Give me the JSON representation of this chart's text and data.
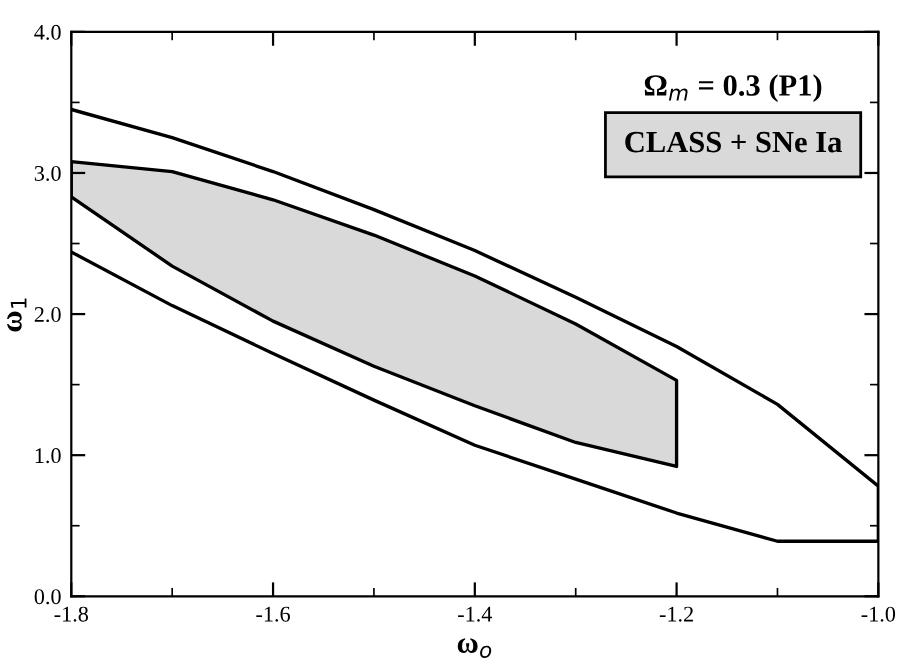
{
  "chart_data": {
    "type": "line",
    "xlabel": "ω$_{o}$",
    "ylabel": "ω$_{1}$",
    "annotations": [
      "Ω$_{m}$ = 0.3 (P1)"
    ],
    "series": [
      {
        "type": "area",
        "name": "CLASS + SNe Ia",
        "color": "#d9d9d9",
        "x": [
          -1.8,
          -1.7,
          -1.6,
          -1.5,
          -1.4,
          -1.3,
          -1.2,
          -1.2,
          -1.3,
          -1.4,
          -1.5,
          -1.6,
          -1.7,
          -1.8
        ],
        "values": [
          3.08,
          3.01,
          2.81,
          2.56,
          2.27,
          1.93,
          1.53,
          0.92,
          1.09,
          1.35,
          1.63,
          1.95,
          2.34,
          2.83
        ]
      },
      {
        "color": "#000000",
        "x": [
          -1.8,
          -1.7,
          -1.6,
          -1.5,
          -1.4,
          -1.3,
          -1.2,
          -1.1,
          -1.0,
          -1.0,
          -1.1,
          -1.2,
          -1.3,
          -1.4,
          -1.5,
          -1.6,
          -1.7,
          -1.8
        ],
        "values": [
          3.45,
          3.25,
          3.01,
          2.74,
          2.45,
          2.12,
          1.77,
          1.36,
          0.78,
          0.39,
          0.39,
          0.59,
          0.83,
          1.07,
          1.39,
          1.72,
          2.06,
          2.44
        ]
      }
    ],
    "xlim": [
      -1.8,
      -1.0
    ],
    "xticks": [
      {
        "value": -1.8,
        "label": "-1.8"
      },
      {
        "value": -1.6,
        "label": "-1.6"
      },
      {
        "value": -1.4,
        "label": "-1.4"
      },
      {
        "value": -1.2,
        "label": "-1.2"
      },
      {
        "value": -1.0,
        "label": "-1.0"
      }
    ],
    "ylim": [
      0,
      4.0
    ],
    "yticks": [
      {
        "value": 0,
        "label": "0.0"
      },
      {
        "value": 1.0,
        "label": "1.0"
      },
      {
        "value": 2.0,
        "label": "2.0"
      },
      {
        "value": 3.0,
        "label": "3.0"
      },
      {
        "value": 4.0,
        "label": "4.0"
      }
    ],
    "legend": "top right",
    "grid": false
  }
}
